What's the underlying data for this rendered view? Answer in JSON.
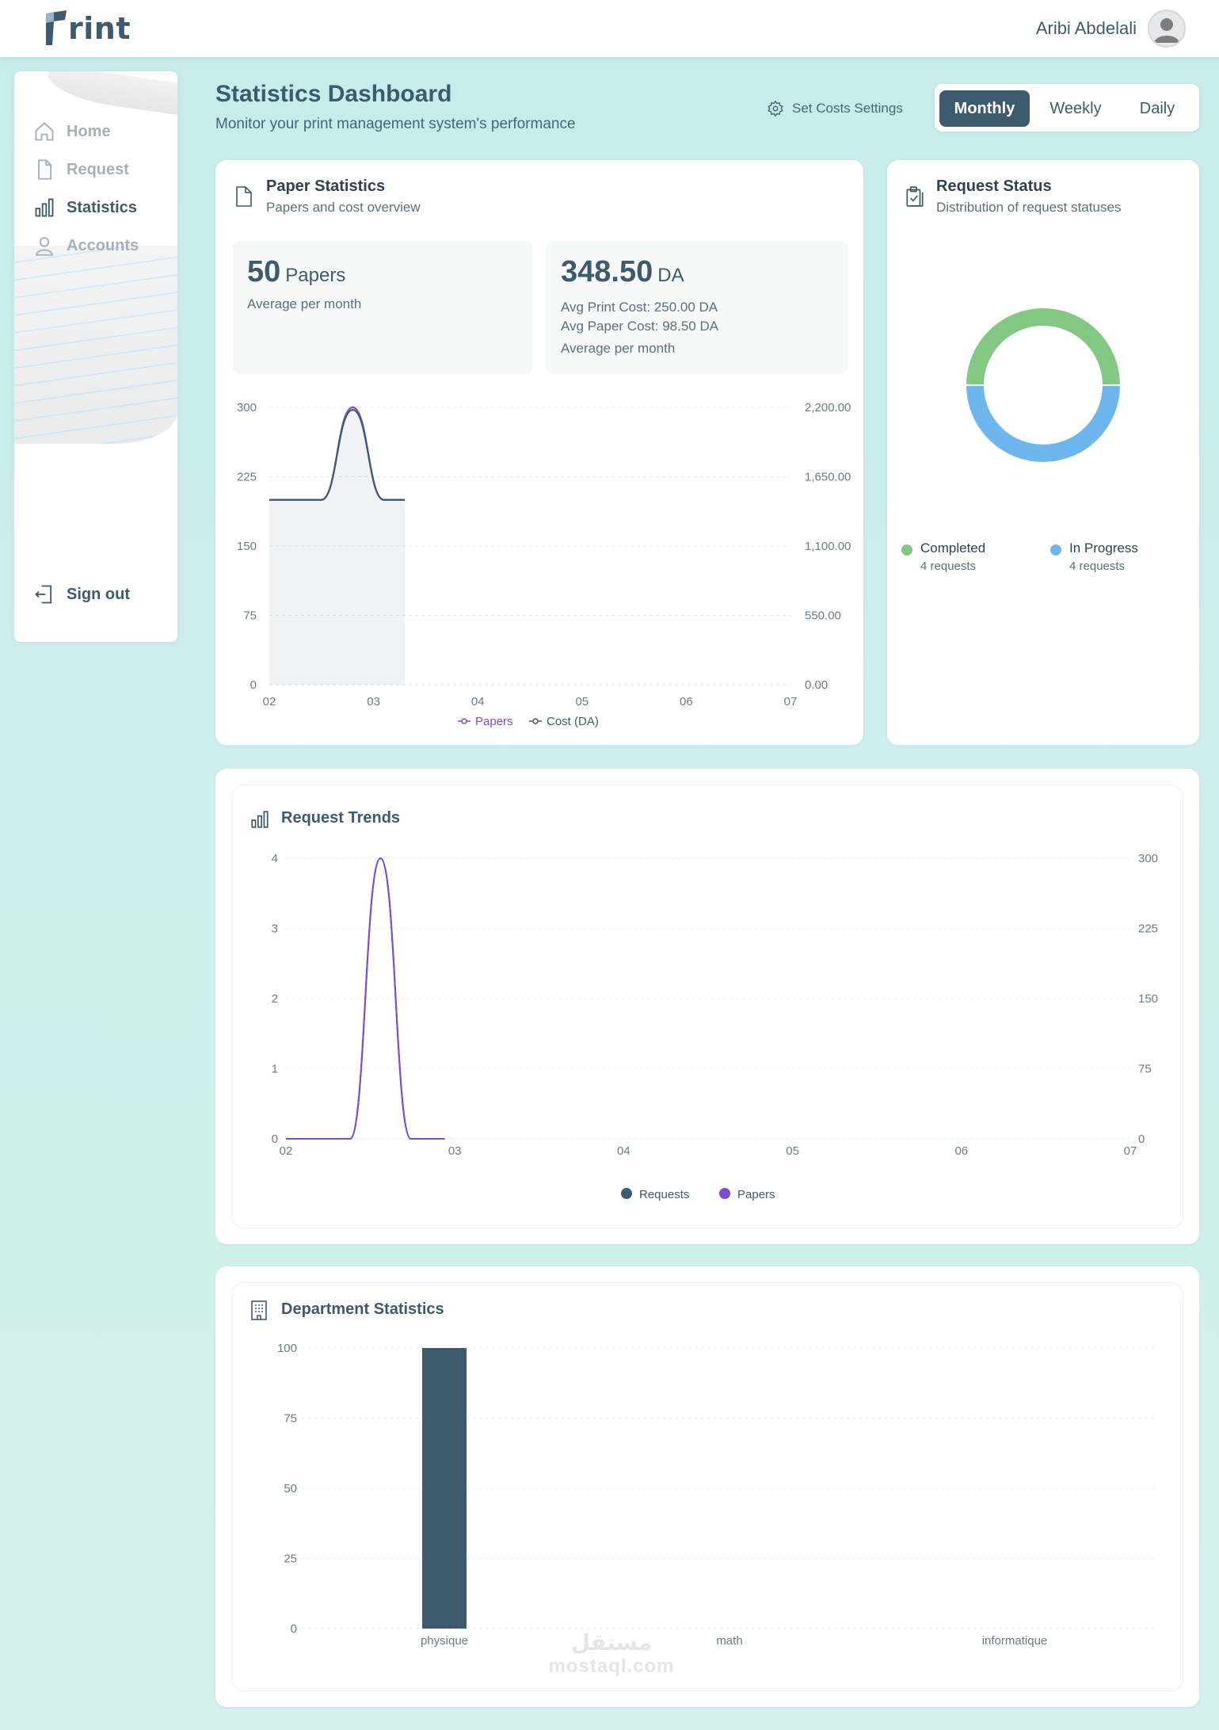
{
  "app": {
    "logo_text": "rint",
    "user_name": "Aribi Abdelali"
  },
  "sidebar": {
    "items": [
      {
        "label": "Home",
        "icon": "home-icon"
      },
      {
        "label": "Request",
        "icon": "file-icon"
      },
      {
        "label": "Statistics",
        "icon": "bar-chart-icon"
      },
      {
        "label": "Accounts",
        "icon": "user-icon"
      }
    ],
    "signout_label": "Sign out"
  },
  "page": {
    "title": "Statistics Dashboard",
    "subtitle": "Monitor your print management system's performance",
    "settings_label": "Set Costs Settings",
    "periods": [
      "Monthly",
      "Weekly",
      "Daily"
    ],
    "active_period": "Monthly"
  },
  "paper_stats": {
    "title": "Paper Statistics",
    "subtitle": "Papers and cost overview",
    "papers_value": "50",
    "papers_unit": "Papers",
    "papers_caption": "Average per month",
    "cost_value": "348.50",
    "cost_unit": "DA",
    "print_cost_line": "Avg Print Cost: 250.00 DA",
    "paper_cost_line": "Avg Paper Cost: 98.50 DA",
    "cost_caption": "Average per month"
  },
  "request_status": {
    "title": "Request Status",
    "subtitle": "Distribution of request statuses",
    "items": [
      {
        "label": "Completed",
        "count": "4 requests",
        "color": "#82c882"
      },
      {
        "label": "In Progress",
        "count": "4 requests",
        "color": "#6db7ee"
      }
    ]
  },
  "request_trends": {
    "title": "Request Trends"
  },
  "department_stats": {
    "title": "Department Statistics"
  },
  "chart_data": [
    {
      "type": "line",
      "x": [
        "02",
        "03",
        "04",
        "05",
        "06",
        "07"
      ],
      "y_left_ticks": [
        "0",
        "75",
        "150",
        "225",
        "300"
      ],
      "y_right_ticks": [
        "0.00",
        "550.00",
        "1,100.00",
        "1,650.00",
        "2,200.00"
      ],
      "ylim_left": [
        0,
        300
      ],
      "ylim_right": [
        0,
        2200
      ],
      "series": [
        {
          "name": "Papers",
          "color": "#7b4bd6",
          "axis": "left",
          "points": [
            [
              2.0,
              200
            ],
            [
              2.5,
              200
            ],
            [
              2.8,
              300
            ],
            [
              3.1,
              200
            ],
            [
              3.3,
              200
            ]
          ]
        },
        {
          "name": "Cost (DA)",
          "color": "#3e5a6d",
          "axis": "right",
          "points": [
            [
              2.0,
              1466
            ],
            [
              2.5,
              1466
            ],
            [
              2.8,
              2180
            ],
            [
              3.1,
              1466
            ],
            [
              3.3,
              1466
            ]
          ]
        }
      ],
      "grid": true
    },
    {
      "type": "pie",
      "donut": true,
      "slices": [
        {
          "name": "Completed",
          "value": 4,
          "color": "#82c882"
        },
        {
          "name": "In Progress",
          "value": 4,
          "color": "#6db7ee"
        }
      ]
    },
    {
      "type": "line",
      "x": [
        "02",
        "03",
        "04",
        "05",
        "06",
        "07"
      ],
      "y_left_ticks": [
        "0",
        "1",
        "2",
        "3",
        "4"
      ],
      "y_right_ticks": [
        "0",
        "75",
        "150",
        "225",
        "300"
      ],
      "ylim_left": [
        0,
        4
      ],
      "ylim_right": [
        0,
        300
      ],
      "series": [
        {
          "name": "Requests",
          "color": "#3e5a6d",
          "axis": "left",
          "points": [
            [
              2.0,
              0
            ],
            [
              2.38,
              0
            ],
            [
              2.56,
              4
            ],
            [
              2.74,
              0
            ],
            [
              2.94,
              0
            ]
          ]
        },
        {
          "name": "Papers",
          "color": "#7b4bd6",
          "axis": "right",
          "points": [
            [
              2.0,
              0
            ],
            [
              2.38,
              0
            ],
            [
              2.56,
              300
            ],
            [
              2.74,
              0
            ],
            [
              2.94,
              0
            ]
          ]
        }
      ],
      "legend": [
        "Requests",
        "Papers"
      ],
      "grid": true
    },
    {
      "type": "bar",
      "categories": [
        "physique",
        "math",
        "informatique"
      ],
      "values": [
        100,
        0,
        0
      ],
      "y_ticks": [
        "0",
        "25",
        "50",
        "75",
        "100"
      ],
      "ylim": [
        0,
        100
      ],
      "color": "#3e5a6d",
      "grid": true
    }
  ],
  "watermark": {
    "arabic": "مستقل",
    "latin": "mostaql.com"
  }
}
